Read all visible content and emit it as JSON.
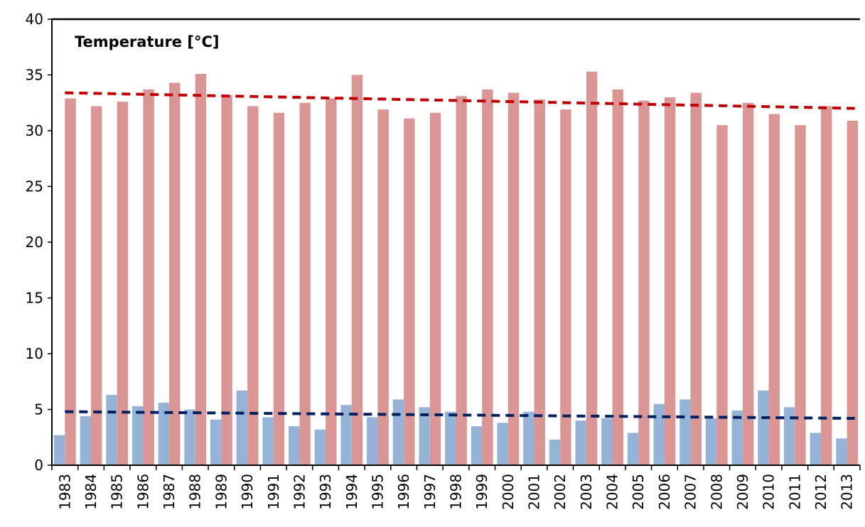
{
  "chart_data": {
    "type": "bar",
    "title": "Temperature [°C]",
    "categories": [
      "1983",
      "1984",
      "1985",
      "1986",
      "1987",
      "1988",
      "1989",
      "1990",
      "1991",
      "1992",
      "1993",
      "1994",
      "1995",
      "1996",
      "1997",
      "1998",
      "1999",
      "2000",
      "2001",
      "2002",
      "2003",
      "2004",
      "2005",
      "2006",
      "2007",
      "2008",
      "2009",
      "2010",
      "2011",
      "2012",
      "2013"
    ],
    "series": [
      {
        "color": "#95b3d7",
        "values": [
          2.7,
          4.4,
          6.3,
          5.3,
          5.6,
          5.0,
          4.1,
          6.7,
          4.3,
          3.5,
          3.2,
          5.4,
          4.3,
          5.9,
          5.2,
          4.8,
          3.5,
          3.8,
          4.8,
          2.3,
          4.0,
          4.2,
          2.9,
          5.5,
          5.9,
          4.2,
          4.9,
          6.7,
          5.2,
          2.9,
          2.4
        ]
      },
      {
        "color": "#d99694",
        "values": [
          32.9,
          32.2,
          32.6,
          33.7,
          34.3,
          35.1,
          33.2,
          32.2,
          31.6,
          32.5,
          32.9,
          35.0,
          31.9,
          31.1,
          31.6,
          33.1,
          33.7,
          33.4,
          32.8,
          31.9,
          35.3,
          33.7,
          32.7,
          33.0,
          33.4,
          30.5,
          32.5,
          31.5,
          30.5,
          32.2,
          30.9
        ]
      }
    ],
    "trendlines": [
      {
        "color": "#002060",
        "values": [
          4.8,
          4.2
        ]
      },
      {
        "color": "#c00000",
        "values": [
          33.4,
          32.0
        ]
      }
    ],
    "ylim": [
      0,
      40
    ],
    "yticks": [
      0,
      5,
      10,
      15,
      20,
      25,
      30,
      35,
      40
    ],
    "grid": false
  }
}
